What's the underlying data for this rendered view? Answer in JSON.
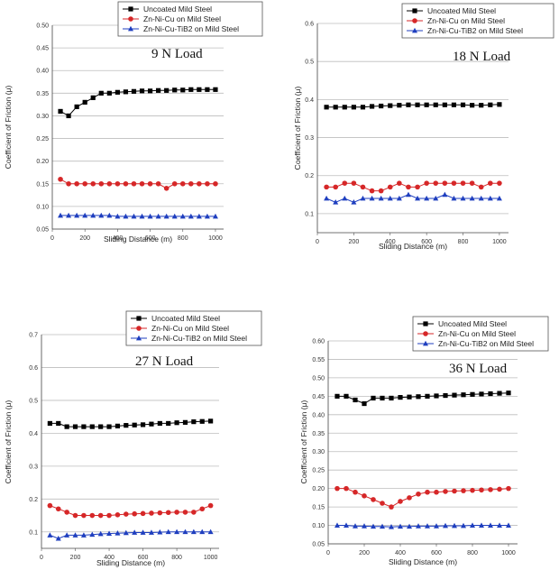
{
  "chart_data": [
    {
      "type": "line",
      "title": "9 N Load",
      "xlabel": "Sliding Distance (m)",
      "ylabel": "Coefficient of Friction (μ)",
      "xlim": [
        0,
        1050
      ],
      "ylim": [
        0.05,
        0.5
      ],
      "xticks": [
        "0",
        "200",
        "400",
        "600",
        "800",
        "1000"
      ],
      "yticks": [
        "0.05",
        "0.10",
        "0.15",
        "0.20",
        "0.25",
        "0.30",
        "0.35",
        "0.40",
        "0.45",
        "0.50"
      ],
      "legend_position": "top-right",
      "x": [
        50,
        100,
        150,
        200,
        250,
        300,
        350,
        400,
        450,
        500,
        550,
        600,
        650,
        700,
        750,
        800,
        850,
        900,
        950,
        1000
      ],
      "series": [
        {
          "name": "Uncoated Mild Steel",
          "color": "#000000",
          "marker": "square",
          "values": [
            0.31,
            0.3,
            0.32,
            0.33,
            0.34,
            0.35,
            0.35,
            0.352,
            0.353,
            0.354,
            0.355,
            0.355,
            0.356,
            0.356,
            0.357,
            0.357,
            0.358,
            0.358,
            0.358,
            0.358
          ]
        },
        {
          "name": "Zn-Ni-Cu on Mild Steel",
          "color": "#d62728",
          "marker": "diamond",
          "values": [
            0.16,
            0.15,
            0.15,
            0.15,
            0.15,
            0.15,
            0.15,
            0.15,
            0.15,
            0.15,
            0.15,
            0.15,
            0.15,
            0.14,
            0.15,
            0.15,
            0.15,
            0.15,
            0.15,
            0.15
          ]
        },
        {
          "name": "Zn-Ni-Cu-TiB2 on Mild Steel",
          "color": "#1f3fbf",
          "marker": "triangle",
          "values": [
            0.08,
            0.08,
            0.08,
            0.08,
            0.08,
            0.08,
            0.08,
            0.078,
            0.078,
            0.078,
            0.078,
            0.078,
            0.078,
            0.078,
            0.078,
            0.078,
            0.078,
            0.078,
            0.078,
            0.078
          ]
        }
      ]
    },
    {
      "type": "line",
      "title": "18 N Load",
      "xlabel": "Sliding Distance (m)",
      "ylabel": "Coefficient of Friction (μ)",
      "xlim": [
        0,
        1050
      ],
      "ylim": [
        0.05,
        0.6
      ],
      "xticks": [
        "0",
        "200",
        "400",
        "600",
        "800",
        "1000"
      ],
      "yticks": [
        "0.1",
        "0.2",
        "0.3",
        "0.4",
        "0.5",
        "0.6"
      ],
      "legend_position": "top-right",
      "x": [
        50,
        100,
        150,
        200,
        250,
        300,
        350,
        400,
        450,
        500,
        550,
        600,
        650,
        700,
        750,
        800,
        850,
        900,
        950,
        1000
      ],
      "series": [
        {
          "name": "Uncoated Mild Steel",
          "color": "#000000",
          "marker": "square",
          "values": [
            0.38,
            0.38,
            0.38,
            0.38,
            0.38,
            0.382,
            0.383,
            0.384,
            0.385,
            0.386,
            0.386,
            0.386,
            0.386,
            0.386,
            0.386,
            0.386,
            0.385,
            0.385,
            0.386,
            0.387
          ]
        },
        {
          "name": "Zn-Ni-Cu on Mild Steel",
          "color": "#d62728",
          "marker": "diamond",
          "values": [
            0.17,
            0.17,
            0.18,
            0.18,
            0.17,
            0.16,
            0.16,
            0.17,
            0.18,
            0.17,
            0.17,
            0.18,
            0.18,
            0.18,
            0.18,
            0.18,
            0.18,
            0.17,
            0.18,
            0.18
          ]
        },
        {
          "name": "Zn-Ni-Cu-TiB2 on Mild Steel",
          "color": "#1f3fbf",
          "marker": "triangle",
          "values": [
            0.14,
            0.13,
            0.14,
            0.13,
            0.14,
            0.14,
            0.14,
            0.14,
            0.14,
            0.15,
            0.14,
            0.14,
            0.14,
            0.15,
            0.14,
            0.14,
            0.14,
            0.14,
            0.14,
            0.14
          ]
        }
      ]
    },
    {
      "type": "line",
      "title": "27 N Load",
      "xlabel": "Sliding Distance (m)",
      "ylabel": "Coefficient of Friction (μ)",
      "xlim": [
        0,
        1050
      ],
      "ylim": [
        0.05,
        0.7
      ],
      "xticks": [
        "0",
        "200",
        "400",
        "600",
        "800",
        "1000"
      ],
      "yticks": [
        "0.1",
        "0.2",
        "0.3",
        "0.4",
        "0.5",
        "0.6",
        "0.7"
      ],
      "legend_position": "top-right",
      "x": [
        50,
        100,
        150,
        200,
        250,
        300,
        350,
        400,
        450,
        500,
        550,
        600,
        650,
        700,
        750,
        800,
        850,
        900,
        950,
        1000
      ],
      "series": [
        {
          "name": "Uncoated Mild Steel",
          "color": "#000000",
          "marker": "square",
          "values": [
            0.43,
            0.43,
            0.42,
            0.42,
            0.42,
            0.42,
            0.42,
            0.42,
            0.422,
            0.424,
            0.425,
            0.426,
            0.428,
            0.43,
            0.43,
            0.432,
            0.433,
            0.435,
            0.436,
            0.437
          ]
        },
        {
          "name": "Zn-Ni-Cu on Mild Steel",
          "color": "#d62728",
          "marker": "diamond",
          "values": [
            0.18,
            0.17,
            0.16,
            0.15,
            0.15,
            0.15,
            0.15,
            0.15,
            0.152,
            0.154,
            0.155,
            0.156,
            0.157,
            0.158,
            0.159,
            0.16,
            0.16,
            0.16,
            0.17,
            0.18
          ]
        },
        {
          "name": "Zn-Ni-Cu-TiB2 on Mild Steel",
          "color": "#1f3fbf",
          "marker": "triangle",
          "values": [
            0.09,
            0.08,
            0.09,
            0.09,
            0.09,
            0.092,
            0.094,
            0.095,
            0.096,
            0.097,
            0.098,
            0.098,
            0.098,
            0.099,
            0.1,
            0.1,
            0.1,
            0.1,
            0.1,
            0.1
          ]
        }
      ]
    },
    {
      "type": "line",
      "title": "36 N Load",
      "xlabel": "Sliding Distance (m)",
      "ylabel": "Coefficient of Friction (μ)",
      "xlim": [
        0,
        1050
      ],
      "ylim": [
        0.05,
        0.6
      ],
      "xticks": [
        "0",
        "200",
        "400",
        "600",
        "800",
        "1000"
      ],
      "yticks": [
        "0.05",
        "0.10",
        "0.15",
        "0.20",
        "0.25",
        "0.30",
        "0.35",
        "0.40",
        "0.45",
        "0.50",
        "0.55",
        "0.60"
      ],
      "legend_position": "top-right",
      "x": [
        50,
        100,
        150,
        200,
        250,
        300,
        350,
        400,
        450,
        500,
        550,
        600,
        650,
        700,
        750,
        800,
        850,
        900,
        950,
        1000
      ],
      "series": [
        {
          "name": "Uncoated Mild Steel",
          "color": "#000000",
          "marker": "square",
          "values": [
            0.45,
            0.45,
            0.44,
            0.43,
            0.445,
            0.445,
            0.445,
            0.447,
            0.448,
            0.449,
            0.45,
            0.451,
            0.452,
            0.453,
            0.454,
            0.455,
            0.456,
            0.457,
            0.458,
            0.459
          ]
        },
        {
          "name": "Zn-Ni-Cu on Mild Steel",
          "color": "#d62728",
          "marker": "diamond",
          "values": [
            0.2,
            0.2,
            0.19,
            0.18,
            0.17,
            0.16,
            0.15,
            0.165,
            0.175,
            0.185,
            0.19,
            0.19,
            0.192,
            0.193,
            0.194,
            0.195,
            0.196,
            0.197,
            0.198,
            0.2
          ]
        },
        {
          "name": "Zn-Ni-Cu-TiB2 on Mild Steel",
          "color": "#1f3fbf",
          "marker": "triangle",
          "values": [
            0.1,
            0.1,
            0.098,
            0.098,
            0.097,
            0.097,
            0.096,
            0.097,
            0.097,
            0.098,
            0.098,
            0.098,
            0.099,
            0.099,
            0.099,
            0.1,
            0.1,
            0.1,
            0.1,
            0.1
          ]
        }
      ]
    }
  ]
}
